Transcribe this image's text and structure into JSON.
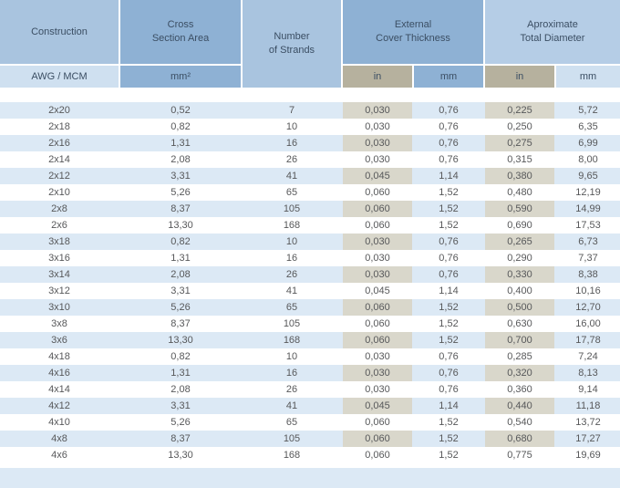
{
  "colors": {
    "header_medium_blue": "#8eb1d4",
    "header_light_blue": "#a9c4df",
    "header_pale_blue": "#b5cde6",
    "subheader_pale_blue": "#cfe0f0",
    "subheader_tan": "#b6b19e",
    "row_stripe_blue": "#dce9f5",
    "row_stripe_tan": "#d9d7cb",
    "row_white": "#ffffff",
    "header_text": "#3b4e63",
    "data_text": "#57585a"
  },
  "table": {
    "header": {
      "construction": "Construction",
      "cross_section_area": "Cross\nSection Area",
      "number_of_strands": "Number\nof Strands",
      "external_cover_thickness": "External\nCover Thickness",
      "approximate_total_diameter": "Aproximate\nTotal Diameter"
    },
    "subheader": {
      "construction_unit": "AWG / MCM",
      "cross_section_unit": "mm²",
      "cover_in": "in",
      "cover_mm": "mm",
      "diameter_in": "in",
      "diameter_mm": "mm"
    },
    "column_names": [
      "construction-cell",
      "cross-section-area-cell",
      "number-of-strands-cell",
      "cover-thickness-in-cell",
      "cover-thickness-mm-cell",
      "total-diameter-in-cell",
      "total-diameter-mm-cell"
    ],
    "highlight_column_indexes": [
      3,
      5
    ],
    "rows": [
      [
        "2x20",
        "0,52",
        "7",
        "0,030",
        "0,76",
        "0,225",
        "5,72"
      ],
      [
        "2x18",
        "0,82",
        "10",
        "0,030",
        "0,76",
        "0,250",
        "6,35"
      ],
      [
        "2x16",
        "1,31",
        "16",
        "0,030",
        "0,76",
        "0,275",
        "6,99"
      ],
      [
        "2x14",
        "2,08",
        "26",
        "0,030",
        "0,76",
        "0,315",
        "8,00"
      ],
      [
        "2x12",
        "3,31",
        "41",
        "0,045",
        "1,14",
        "0,380",
        "9,65"
      ],
      [
        "2x10",
        "5,26",
        "65",
        "0,060",
        "1,52",
        "0,480",
        "12,19"
      ],
      [
        "2x8",
        "8,37",
        "105",
        "0,060",
        "1,52",
        "0,590",
        "14,99"
      ],
      [
        "2x6",
        "13,30",
        "168",
        "0,060",
        "1,52",
        "0,690",
        "17,53"
      ],
      [
        "3x18",
        "0,82",
        "10",
        "0,030",
        "0,76",
        "0,265",
        "6,73"
      ],
      [
        "3x16",
        "1,31",
        "16",
        "0,030",
        "0,76",
        "0,290",
        "7,37"
      ],
      [
        "3x14",
        "2,08",
        "26",
        "0,030",
        "0,76",
        "0,330",
        "8,38"
      ],
      [
        "3x12",
        "3,31",
        "41",
        "0,045",
        "1,14",
        "0,400",
        "10,16"
      ],
      [
        "3x10",
        "5,26",
        "65",
        "0,060",
        "1,52",
        "0,500",
        "12,70"
      ],
      [
        "3x8",
        "8,37",
        "105",
        "0,060",
        "1,52",
        "0,630",
        "16,00"
      ],
      [
        "3x6",
        "13,30",
        "168",
        "0,060",
        "1,52",
        "0,700",
        "17,78"
      ],
      [
        "4x18",
        "0,82",
        "10",
        "0,030",
        "0,76",
        "0,285",
        "7,24"
      ],
      [
        "4x16",
        "1,31",
        "16",
        "0,030",
        "0,76",
        "0,320",
        "8,13"
      ],
      [
        "4x14",
        "2,08",
        "26",
        "0,030",
        "0,76",
        "0,360",
        "9,14"
      ],
      [
        "4x12",
        "3,31",
        "41",
        "0,045",
        "1,14",
        "0,440",
        "11,18"
      ],
      [
        "4x10",
        "5,26",
        "65",
        "0,060",
        "1,52",
        "0,540",
        "13,72"
      ],
      [
        "4x8",
        "8,37",
        "105",
        "0,060",
        "1,52",
        "0,680",
        "17,27"
      ],
      [
        "4x6",
        "13,30",
        "168",
        "0,060",
        "1,52",
        "0,775",
        "19,69"
      ]
    ]
  }
}
